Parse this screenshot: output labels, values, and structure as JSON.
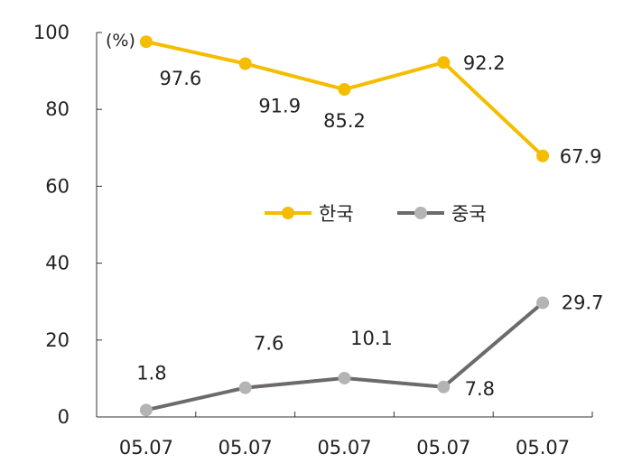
{
  "chart_data": {
    "type": "line",
    "unit_label": "(%)",
    "categories": [
      "05.07",
      "05.07",
      "05.07",
      "05.07",
      "05.07"
    ],
    "ylim": [
      0,
      100
    ],
    "yticks": [
      0,
      20,
      40,
      60,
      80,
      100
    ],
    "grid": false,
    "legend_position": "center",
    "series": [
      {
        "name": "한국",
        "color": "#f5bd00",
        "values": [
          97.6,
          91.9,
          85.2,
          92.2,
          67.9
        ],
        "labels": [
          "97.6",
          "91.9",
          "85.2",
          "92.2",
          "67.9"
        ]
      },
      {
        "name": "중국",
        "color": "#6d6a6c",
        "marker_color": "#b4b4b4",
        "values": [
          1.8,
          7.6,
          10.1,
          7.8,
          29.7
        ],
        "labels": [
          "1.8",
          "7.6",
          "10.1",
          "7.8",
          "29.7"
        ]
      }
    ]
  }
}
